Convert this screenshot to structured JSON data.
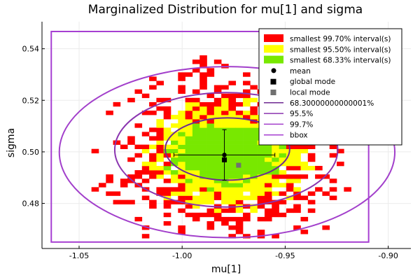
{
  "chart_data": {
    "type": "heatmap",
    "title": "Marginalized Distribution for mu[1] and sigma",
    "xlabel": "mu[1]",
    "ylabel": "sigma",
    "xlim": [
      -1.068,
      -0.889
    ],
    "ylim": [
      0.4625,
      0.5505
    ],
    "xticks": [
      -1.05,
      -1.0,
      -0.95,
      -0.9
    ],
    "xtick_labels": [
      "-1.05",
      "-1.00",
      "-0.95",
      "-0.90"
    ],
    "yticks": [
      0.48,
      0.5,
      0.52,
      0.54
    ],
    "ytick_labels": [
      "0.48",
      "0.50",
      "0.52",
      "0.54"
    ],
    "grid": true,
    "legend_position": "top-right",
    "regions": [
      {
        "name": "smallest 99.70% interval(s)",
        "color": "#ff0000",
        "semi_axes": [
          0.042,
          0.0245
        ]
      },
      {
        "name": "smallest 95.50% interval(s)",
        "color": "#ffff00",
        "semi_axes": [
          0.034,
          0.0185
        ]
      },
      {
        "name": "smallest 68.33% interval(s)",
        "color": "#78e800",
        "semi_axes": [
          0.025,
          0.0115
        ]
      }
    ],
    "region_center": {
      "x": -0.978,
      "y": 0.4985
    },
    "mean": {
      "label": "mean",
      "x": -0.9795,
      "y": 0.4988,
      "x_err": 0.0245,
      "y_err": 0.0098,
      "color": "#000000"
    },
    "global_mode": {
      "label": "global mode",
      "x": -0.9795,
      "y": 0.4969,
      "color": "#000000"
    },
    "local_mode": {
      "label": "local mode",
      "x": -0.9726,
      "y": 0.4948,
      "color": "#707070"
    },
    "ellipses": [
      {
        "name": "68.30000000000001%",
        "cx": -0.978,
        "cy": 0.5011,
        "rx": 0.0302,
        "ry": 0.0121,
        "color": "#6e2a92"
      },
      {
        "name": "95.5%",
        "cx": -0.9786,
        "cy": 0.5008,
        "rx": 0.0541,
        "ry": 0.0222,
        "color": "#8b35b0"
      },
      {
        "name": "99.7%",
        "cx": -0.9782,
        "cy": 0.4999,
        "rx": 0.0814,
        "ry": 0.0332,
        "color": "#a23fcb"
      }
    ],
    "bbox": {
      "name": "bbox",
      "x": [
        -1.0635,
        -0.9095
      ],
      "y": [
        0.465,
        0.5467
      ],
      "color": "#a63fd2"
    }
  }
}
